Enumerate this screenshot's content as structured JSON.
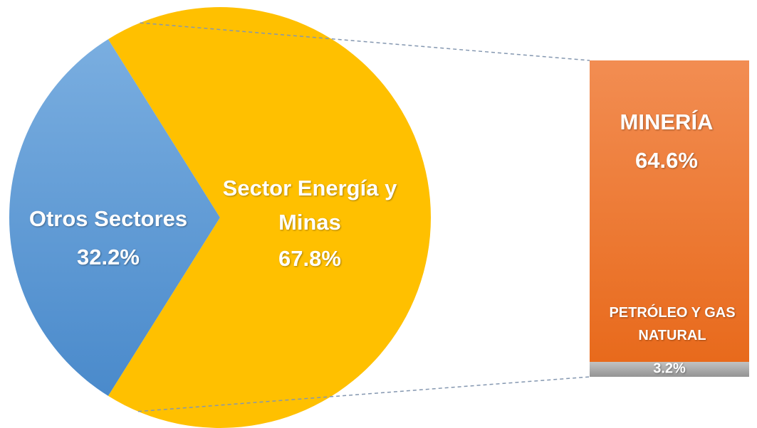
{
  "chart_data": {
    "type": "bar-of-pie",
    "categories": [
      "Otros Sectores",
      "Sector Energía y Minas"
    ],
    "values": [
      32.2,
      67.8
    ],
    "value_labels": [
      "32.2%",
      "67.8%"
    ],
    "colors": [
      "#5b9bd5",
      "#ffc000"
    ],
    "breakdown": {
      "categories": [
        "MINERÍA",
        "PETRÓLEO Y GAS NATURAL"
      ],
      "values": [
        64.6,
        3.2
      ],
      "value_labels": [
        "64.6%",
        "3.2%"
      ],
      "colors": [
        "#ed7d31",
        "#a5a5a5"
      ]
    }
  }
}
